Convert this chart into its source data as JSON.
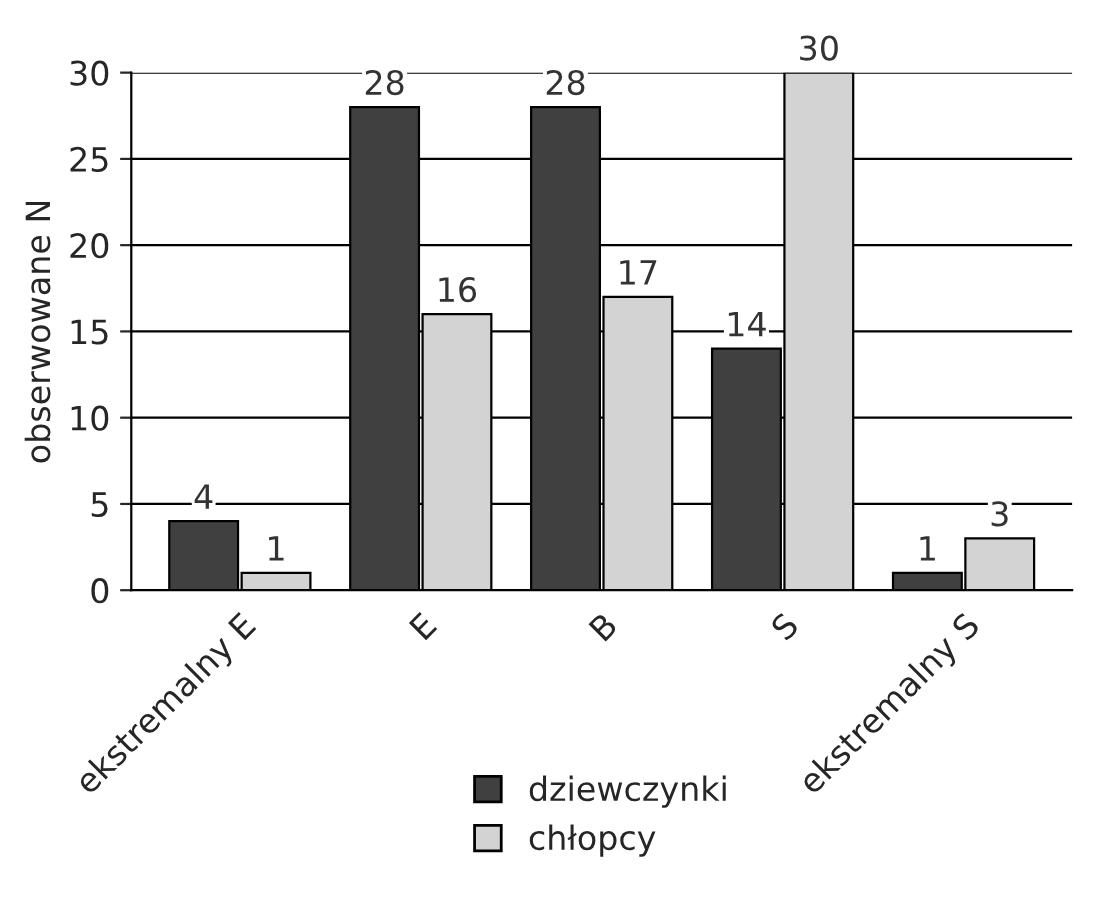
{
  "chart_data": {
    "type": "bar",
    "ylabel": "obserwowane N",
    "categories": [
      "ekstremalny E",
      "E",
      "B",
      "S",
      "ekstremalny S"
    ],
    "series": [
      {
        "name": "dziewczynki",
        "color": "#404040",
        "values": [
          4,
          28,
          28,
          14,
          1
        ]
      },
      {
        "name": "chłopcy",
        "color": "#d3d3d3",
        "values": [
          1,
          16,
          17,
          30,
          3
        ]
      }
    ],
    "ylim": [
      0,
      30
    ],
    "yticks": [
      0,
      5,
      10,
      15,
      20,
      25,
      30
    ],
    "grid": "y",
    "legend": "bottom",
    "data_labels": true
  }
}
